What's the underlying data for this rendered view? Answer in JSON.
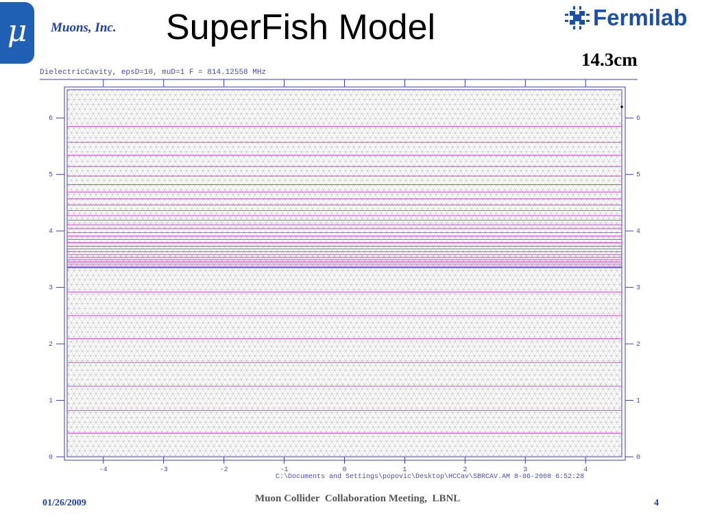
{
  "header": {
    "logo_symbol": "μ",
    "org_name": "Muons, Inc.",
    "title": "SuperFish Model",
    "lab_name": "Fermilab",
    "size_label": "14.3cm"
  },
  "plot": {
    "header_text": "DielectricCavity, epsD=10, muD=1  F = 814.12558 MHz",
    "footer_text": "C:\\Documents and Settings\\popovic\\Desktop\\HCCav\\SBRCAV.AM  8-06-2008   6:52:28",
    "colors": {
      "frame": "#3a3ac0",
      "field_lines": "#d640d6",
      "mesh": "#a8a8a8",
      "text": "#4a4ab5"
    }
  },
  "chart_data": {
    "type": "line",
    "x_ticks": [
      "-4",
      "-3",
      "-2",
      "-1",
      "0",
      "1",
      "2",
      "3",
      "4"
    ],
    "y_ticks": [
      "0",
      "1",
      "2",
      "3",
      "4",
      "5",
      "6"
    ],
    "xlim": [
      -4.6,
      4.6
    ],
    "ylim": [
      0,
      6.5
    ],
    "dielectric_boundary_y": 3.35,
    "grid": "triangular mesh",
    "series": [
      {
        "values": [
          0.42,
          0.82,
          1.25,
          1.67,
          2.09,
          2.5,
          2.92,
          3.37,
          3.41,
          3.45,
          3.49,
          3.53,
          3.58,
          3.63,
          3.68,
          3.73,
          3.79,
          3.85,
          3.91,
          3.97,
          4.04,
          4.11,
          4.19,
          4.27,
          4.36,
          4.46,
          4.57,
          4.69,
          4.82,
          4.97,
          5.14,
          5.34,
          5.57,
          5.85
        ]
      }
    ]
  },
  "footer": {
    "date": "01/26/2009",
    "meeting": "Muon Collider  Collaboration Meeting,  LBNL",
    "page": "4"
  }
}
